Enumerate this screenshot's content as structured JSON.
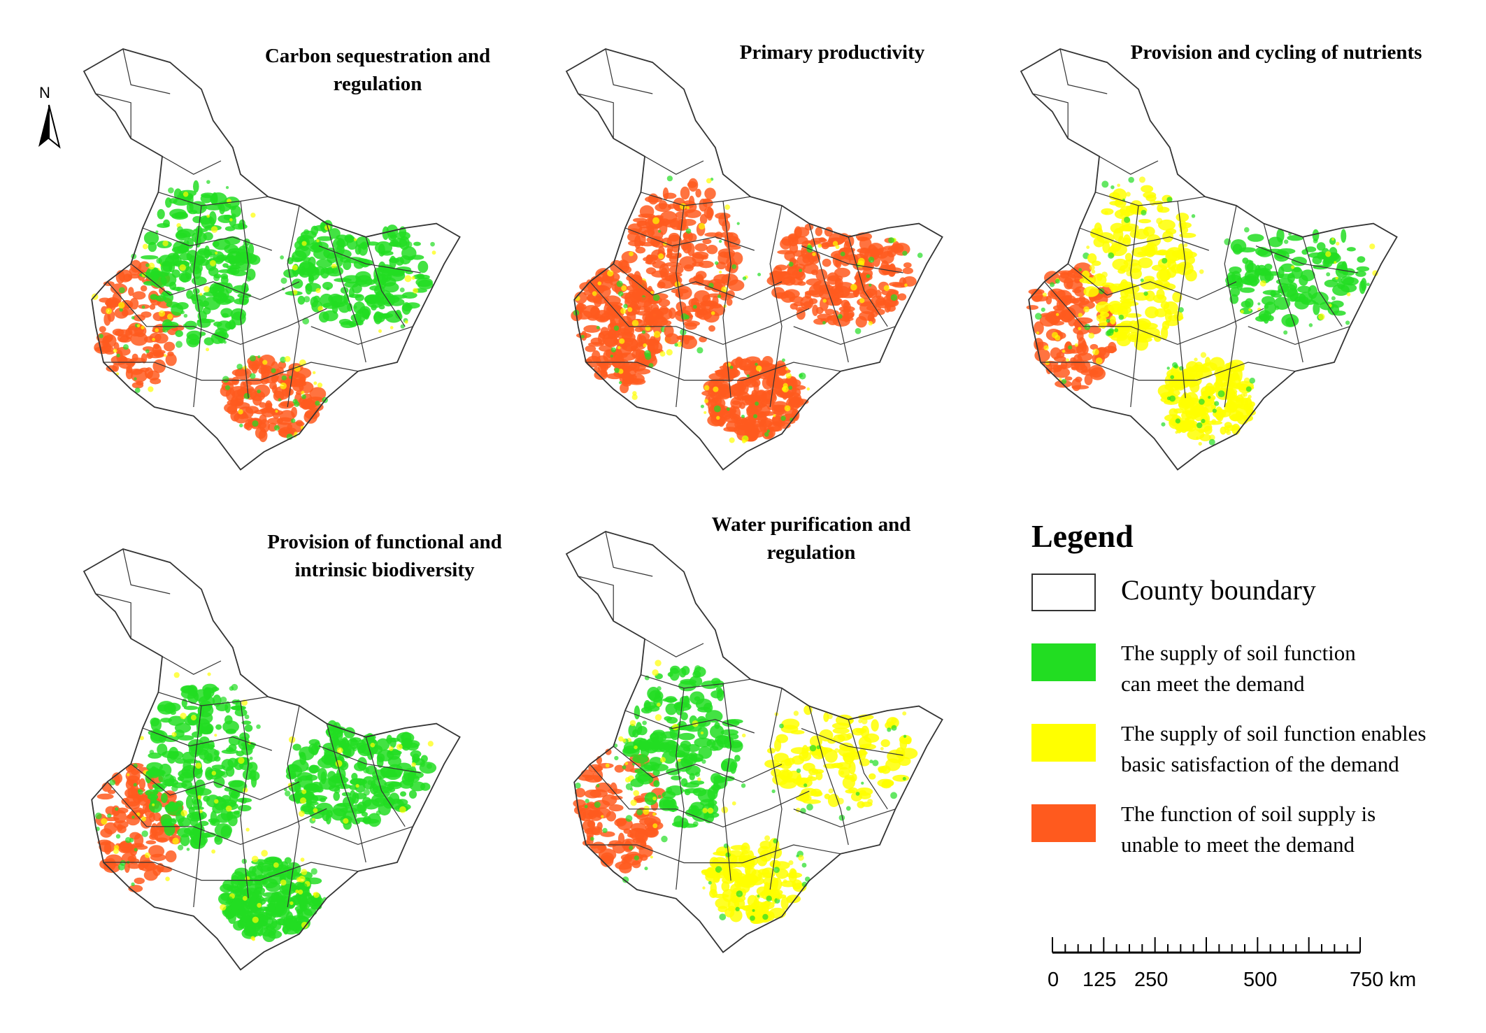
{
  "maps": [
    {
      "title": "Carbon sequestration and\nregulation",
      "patches": {
        "green": 0.5,
        "yellow": 0.08,
        "red": 0.22
      }
    },
    {
      "title": "Primary productivity",
      "patches": {
        "green": 0.1,
        "yellow": 0.12,
        "red": 0.55
      }
    },
    {
      "title": "Provision and cycling of nutrients",
      "patches": {
        "green": 0.25,
        "yellow": 0.35,
        "red": 0.25
      }
    },
    {
      "title": "Provision of functional and\nintrinsic biodiversity",
      "patches": {
        "green": 0.55,
        "yellow": 0.03,
        "red": 0.22
      }
    },
    {
      "title": "Water purification and\nregulation",
      "patches": {
        "green": 0.42,
        "yellow": 0.22,
        "red": 0.2
      }
    }
  ],
  "north_label": "N",
  "legend": {
    "title": "Legend",
    "items": [
      {
        "label": "County boundary",
        "color": "#ffffff"
      },
      {
        "label": "The supply of soil function\n can meet the demand",
        "color": "#22dd22"
      },
      {
        "label": "The supply of soil function enables\n basic satisfaction of the demand",
        "color": "#ffff00"
      },
      {
        "label": "The function of soil supply is\nunable to meet the demand",
        "color": "#ff5a1e"
      }
    ]
  },
  "scale_bar": {
    "labels": [
      "0",
      "125",
      "250",
      "500",
      "750 km"
    ],
    "unit": "km"
  },
  "colors": {
    "green": "#22dd22",
    "yellow": "#ffff00",
    "red": "#ff5a1e",
    "boundary": "#333333"
  }
}
